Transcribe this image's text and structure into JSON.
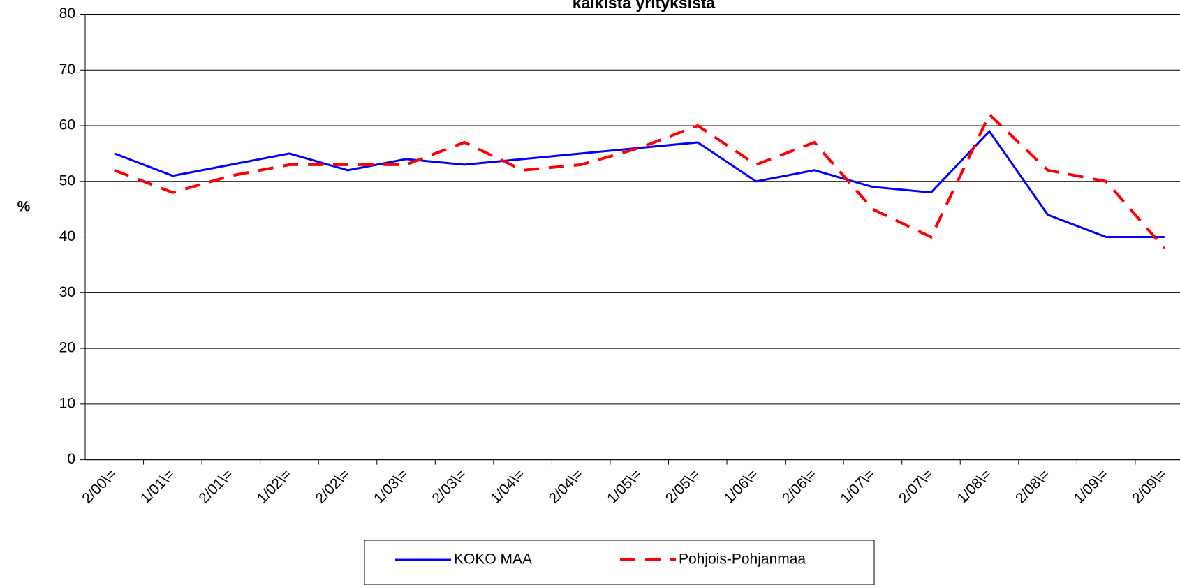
{
  "chart_data": {
    "type": "line",
    "title": "kaikista yrityksistä",
    "y_label": "%",
    "categories": [
      "2/00\\=",
      "1/01\\=",
      "2/01\\=",
      "1/02\\=",
      "2/02\\=",
      "1/03\\=",
      "2/03\\=",
      "1/04\\=",
      "2/04\\=",
      "1/05\\=",
      "2/05\\=",
      "1/06\\=",
      "2/06\\=",
      "1/07\\=",
      "2/07\\=",
      "1/08\\=",
      "2/08\\=",
      "1/09\\=",
      "2/09\\="
    ],
    "series": [
      {
        "name": "KOKO MAA",
        "color": "#0000ff",
        "dash": false,
        "values": [
          55,
          51,
          53,
          55,
          52,
          54,
          53,
          54,
          55,
          56,
          57,
          50,
          52,
          49,
          48,
          59,
          44,
          40,
          40
        ]
      },
      {
        "name": "Pohjois-Pohjanmaa",
        "color": "#ff0000",
        "dash": true,
        "values": [
          52,
          48,
          51,
          53,
          53,
          53,
          57,
          52,
          53,
          56,
          60,
          53,
          57,
          45,
          40,
          62,
          52,
          50,
          38
        ]
      }
    ],
    "ylim": [
      0,
      80
    ],
    "yticks": [
      0,
      10,
      20,
      30,
      40,
      50,
      60,
      70,
      80
    ],
    "grid": true,
    "legend": "bottom"
  }
}
